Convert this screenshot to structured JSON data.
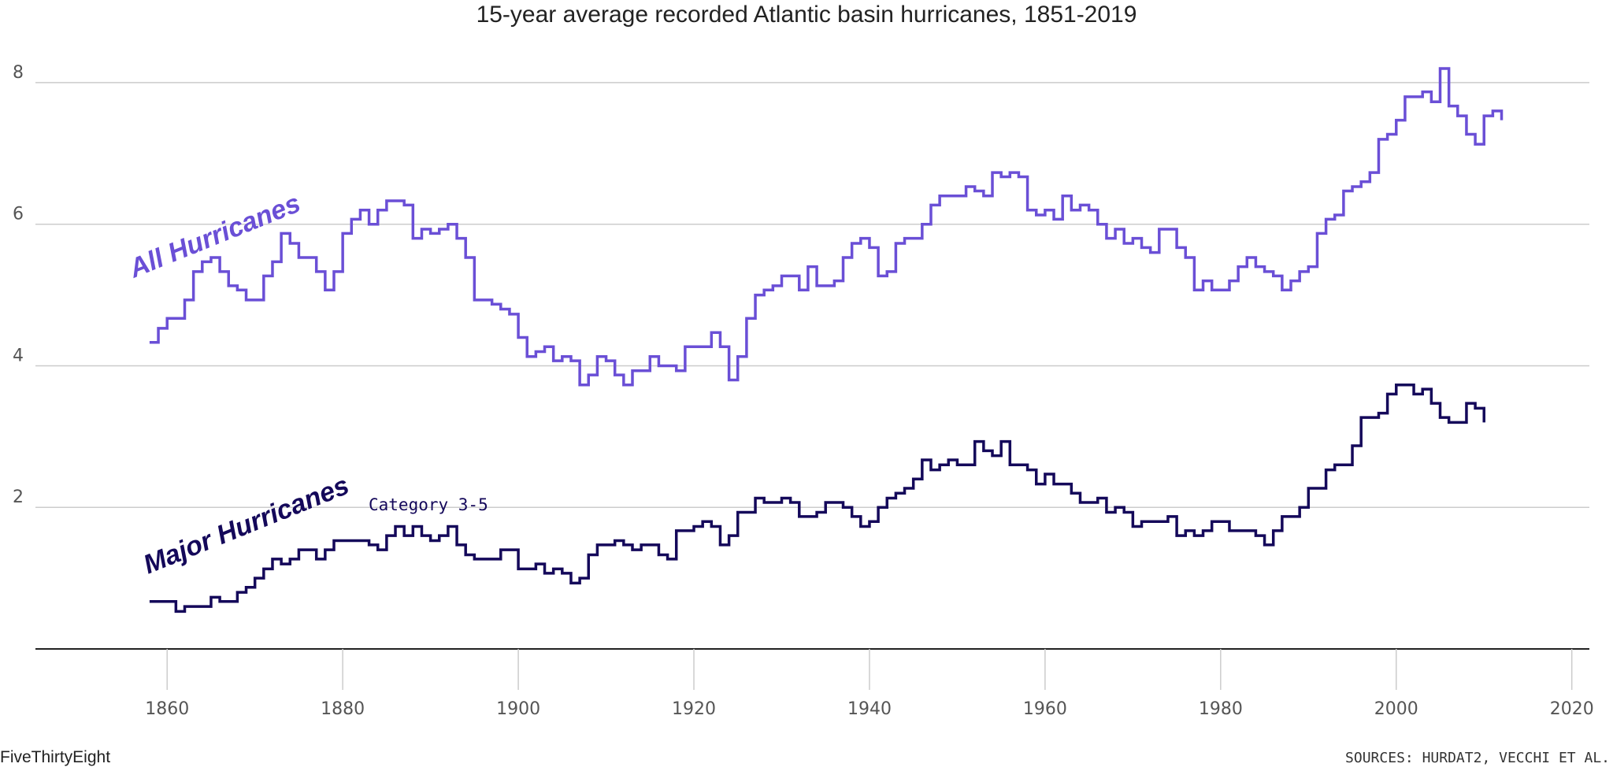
{
  "chart_data": {
    "type": "line",
    "step": true,
    "title": "15-year average recorded Atlantic basin hurricanes, 1851-2019",
    "xlim": [
      1845,
      2022
    ],
    "ylim": [
      0,
      8.6
    ],
    "x_ticks": [
      1860,
      1880,
      1900,
      1920,
      1940,
      1960,
      1980,
      2000,
      2020
    ],
    "y_ticks": [
      2,
      4,
      6,
      8
    ],
    "grid": true,
    "colors": {
      "all": "#6a4fd6",
      "major": "#14085a",
      "grid": "#cccccc",
      "axis": "#222222"
    },
    "series": [
      {
        "key": "all",
        "name": "All Hurricanes",
        "x_start": 1858,
        "values": [
          4.33,
          4.53,
          4.67,
          4.67,
          4.93,
          5.33,
          5.47,
          5.53,
          5.33,
          5.13,
          5.07,
          4.93,
          4.93,
          5.27,
          5.47,
          5.87,
          5.73,
          5.53,
          5.53,
          5.33,
          5.07,
          5.33,
          5.87,
          6.07,
          6.2,
          6.0,
          6.2,
          6.33,
          6.33,
          6.27,
          5.8,
          5.93,
          5.87,
          5.93,
          6.0,
          5.8,
          5.53,
          4.93,
          4.93,
          4.87,
          4.8,
          4.73,
          4.4,
          4.13,
          4.2,
          4.27,
          4.07,
          4.13,
          4.07,
          3.73,
          3.87,
          4.13,
          4.07,
          3.87,
          3.73,
          3.93,
          3.93,
          4.13,
          4.0,
          4.0,
          3.93,
          4.27,
          4.27,
          4.27,
          4.47,
          4.27,
          3.8,
          4.13,
          4.67,
          5.0,
          5.07,
          5.13,
          5.27,
          5.27,
          5.07,
          5.4,
          5.13,
          5.13,
          5.2,
          5.53,
          5.73,
          5.8,
          5.67,
          5.27,
          5.33,
          5.73,
          5.8,
          5.8,
          6.0,
          6.27,
          6.4,
          6.4,
          6.4,
          6.53,
          6.47,
          6.4,
          6.73,
          6.67,
          6.73,
          6.67,
          6.2,
          6.13,
          6.2,
          6.07,
          6.4,
          6.2,
          6.27,
          6.2,
          6.0,
          5.8,
          5.93,
          5.73,
          5.8,
          5.67,
          5.6,
          5.93,
          5.93,
          5.67,
          5.53,
          5.07,
          5.2,
          5.07,
          5.07,
          5.2,
          5.4,
          5.53,
          5.4,
          5.33,
          5.27,
          5.07,
          5.2,
          5.33,
          5.4,
          5.87,
          6.07,
          6.13,
          6.47,
          6.53,
          6.6,
          6.73,
          7.2,
          7.27,
          7.47,
          7.8,
          7.8,
          7.87,
          7.73,
          8.2,
          7.67,
          7.53,
          7.27,
          7.13,
          7.53,
          7.6,
          7.47
        ]
      },
      {
        "key": "major",
        "name": "Major Hurricanes",
        "sublabel": "Category 3-5",
        "x_start": 1858,
        "values": [
          0.67,
          0.67,
          0.67,
          0.53,
          0.6,
          0.6,
          0.6,
          0.73,
          0.67,
          0.67,
          0.8,
          0.87,
          1.0,
          1.13,
          1.27,
          1.2,
          1.27,
          1.4,
          1.4,
          1.27,
          1.4,
          1.53,
          1.53,
          1.53,
          1.53,
          1.47,
          1.4,
          1.6,
          1.73,
          1.6,
          1.73,
          1.6,
          1.53,
          1.6,
          1.73,
          1.47,
          1.33,
          1.27,
          1.27,
          1.27,
          1.4,
          1.4,
          1.13,
          1.13,
          1.2,
          1.07,
          1.13,
          1.07,
          0.93,
          1.0,
          1.33,
          1.47,
          1.47,
          1.53,
          1.47,
          1.4,
          1.47,
          1.47,
          1.33,
          1.27,
          1.67,
          1.67,
          1.73,
          1.8,
          1.73,
          1.47,
          1.6,
          1.93,
          1.93,
          2.13,
          2.07,
          2.07,
          2.13,
          2.07,
          1.87,
          1.87,
          1.93,
          2.07,
          2.07,
          2.0,
          1.87,
          1.73,
          1.8,
          2.0,
          2.13,
          2.2,
          2.27,
          2.4,
          2.67,
          2.53,
          2.6,
          2.67,
          2.6,
          2.6,
          2.93,
          2.8,
          2.73,
          2.93,
          2.6,
          2.6,
          2.53,
          2.33,
          2.47,
          2.33,
          2.33,
          2.2,
          2.07,
          2.07,
          2.13,
          1.93,
          2.0,
          1.93,
          1.73,
          1.8,
          1.8,
          1.8,
          1.87,
          1.6,
          1.67,
          1.6,
          1.67,
          1.8,
          1.8,
          1.67,
          1.67,
          1.67,
          1.6,
          1.47,
          1.67,
          1.87,
          1.87,
          2.0,
          2.27,
          2.27,
          2.53,
          2.6,
          2.6,
          2.87,
          3.27,
          3.27,
          3.33,
          3.6,
          3.73,
          3.73,
          3.6,
          3.67,
          3.47,
          3.27,
          3.2,
          3.2,
          3.47,
          3.4,
          3.2
        ]
      }
    ],
    "source": "FiveThirtyEight",
    "sources_note": "SOURCES: HURDAT2, VECCHI ET AL."
  }
}
